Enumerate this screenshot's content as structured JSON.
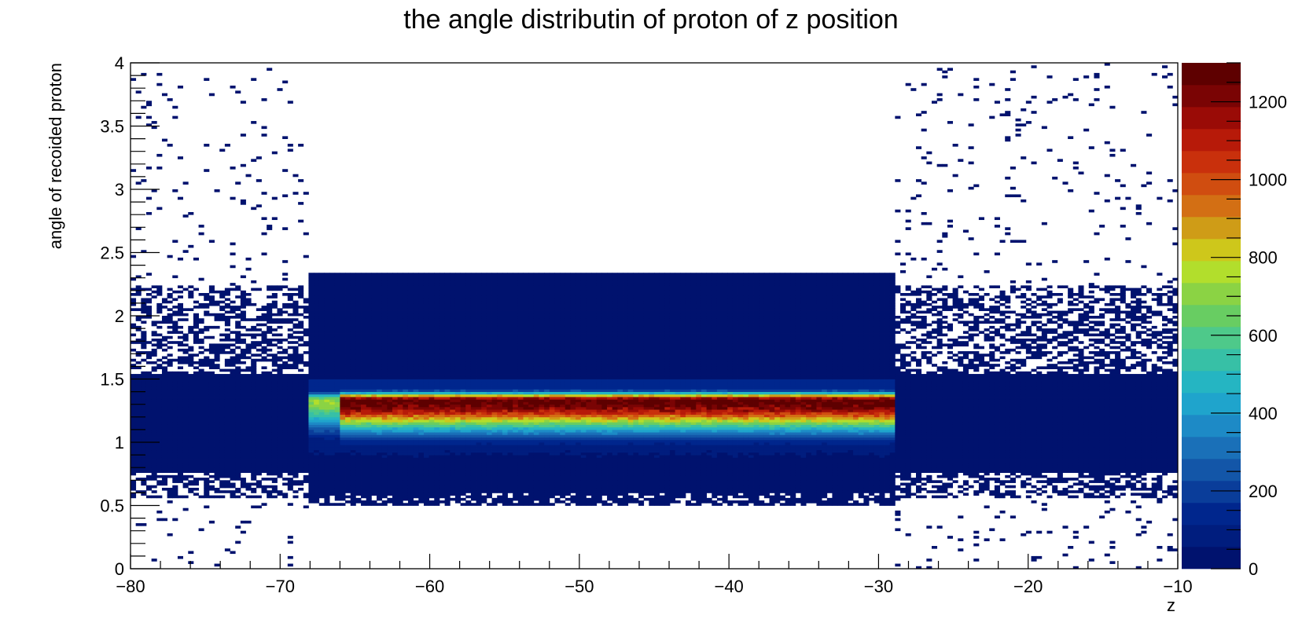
{
  "chart_data": {
    "type": "heatmap",
    "title": "the angle distributin of proton of z position",
    "xlabel": "z",
    "ylabel": "angle of recoided proton",
    "xlim": [
      -80,
      -10
    ],
    "ylim": [
      0,
      4
    ],
    "x_ticks": [
      -80,
      -70,
      -60,
      -50,
      -40,
      -30,
      -20,
      -10
    ],
    "y_ticks": [
      0,
      0.5,
      1,
      1.5,
      2,
      2.5,
      3,
      3.5,
      4
    ],
    "z_ticks": [
      0,
      200,
      400,
      600,
      800,
      1000,
      1200
    ],
    "zlim": [
      0,
      1300
    ],
    "x_tick_labels": [
      "−80",
      "−70",
      "−60",
      "−50",
      "−40",
      "−30",
      "−20",
      "−10"
    ],
    "y_tick_labels": [
      "0",
      "0.5",
      "1",
      "1.5",
      "2",
      "2.5",
      "3",
      "3.5",
      "4"
    ],
    "z_tick_labels": [
      "0",
      "200",
      "400",
      "600",
      "800",
      "1000",
      "1200"
    ],
    "palette": [
      "#00126e",
      "#001d7e",
      "#00268d",
      "#0a3d9a",
      "#1356a8",
      "#1a70b8",
      "#1d8ac6",
      "#1fa4cc",
      "#25b5c2",
      "#37c0a6",
      "#4ec98a",
      "#68cd62",
      "#8bd344",
      "#b2de2c",
      "#cec71b",
      "#cf9c17",
      "#d36f14",
      "#d04d10",
      "#c9300c",
      "#b71a09",
      "#9a0b06",
      "#7a0404",
      "#5e0000"
    ],
    "grid": false,
    "legend": "colorbar-right",
    "density_model": {
      "description": "approximate bin counts: core ridge at angle~1.33 rad between z=-68 and z=-29",
      "core_z_range": [
        -68,
        -29
      ],
      "ridge_angle": 1.33,
      "peak_count": 1300,
      "low_density_angle_range": [
        0.6,
        2.3
      ]
    }
  }
}
